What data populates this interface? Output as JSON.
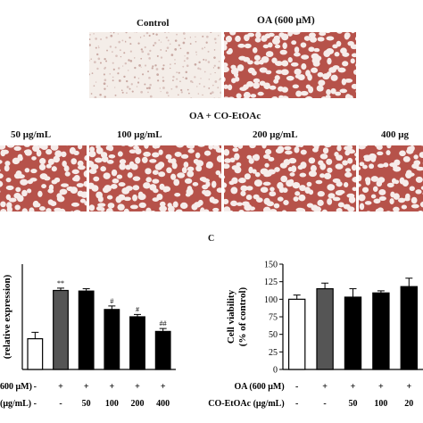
{
  "figure": {
    "panel_c_letter": "C",
    "micrographs": {
      "top_row": [
        {
          "label": "Control",
          "stain": "white"
        },
        {
          "label": "OA (600 μM)",
          "stain": "red"
        }
      ],
      "group_label": "OA + CO-EtOAc",
      "bottom_row": [
        {
          "label": "50 μg/mL"
        },
        {
          "label": "100 μg/mL"
        },
        {
          "label": "200 μg/mL"
        },
        {
          "label": "400 μg"
        }
      ]
    }
  },
  "chart_data": [
    {
      "type": "bar",
      "panel": "left",
      "ylabel": "(relative expression)",
      "yticks": [],
      "categories": [
        "1",
        "2",
        "3",
        "4",
        "5",
        "6"
      ],
      "values": [
        1.05,
        2.7,
        2.68,
        2.05,
        1.8,
        1.3
      ],
      "errors": [
        0.22,
        0.08,
        0.08,
        0.12,
        0.08,
        0.1
      ],
      "ylim": [
        0,
        3.6
      ],
      "fills": [
        "#ffffff",
        "#555555",
        "#000000",
        "#000000",
        "#000000",
        "#000000"
      ],
      "significance": [
        "",
        "**",
        "",
        "#",
        "#",
        "##"
      ],
      "condition_rows": [
        {
          "label": "600 μM)",
          "marks": [
            "-",
            "+",
            "+",
            "+",
            "+",
            "+"
          ]
        },
        {
          "label": "(μg/mL)",
          "marks": [
            "-",
            "-",
            "50",
            "100",
            "200",
            "400"
          ]
        }
      ]
    },
    {
      "type": "bar",
      "panel": "right",
      "ylabel": "Cell viability",
      "ylabel2": "(% of control)",
      "yticks": [
        "0",
        "25",
        "50",
        "75",
        "100",
        "125",
        "150"
      ],
      "ylim": [
        0,
        150
      ],
      "categories": [
        "1",
        "2",
        "3",
        "4",
        "5"
      ],
      "values": [
        100,
        115,
        103,
        109,
        118
      ],
      "errors": [
        6,
        8,
        12,
        3,
        12
      ],
      "fills": [
        "#ffffff",
        "#555555",
        "#000000",
        "#000000",
        "#000000"
      ],
      "condition_rows": [
        {
          "label": "OA (600 μM)",
          "marks": [
            "-",
            "+",
            "+",
            "+",
            "+"
          ]
        },
        {
          "label": "CO-EtOAc (μg/mL)",
          "marks": [
            "-",
            "-",
            "50",
            "100",
            "20"
          ]
        }
      ]
    }
  ]
}
